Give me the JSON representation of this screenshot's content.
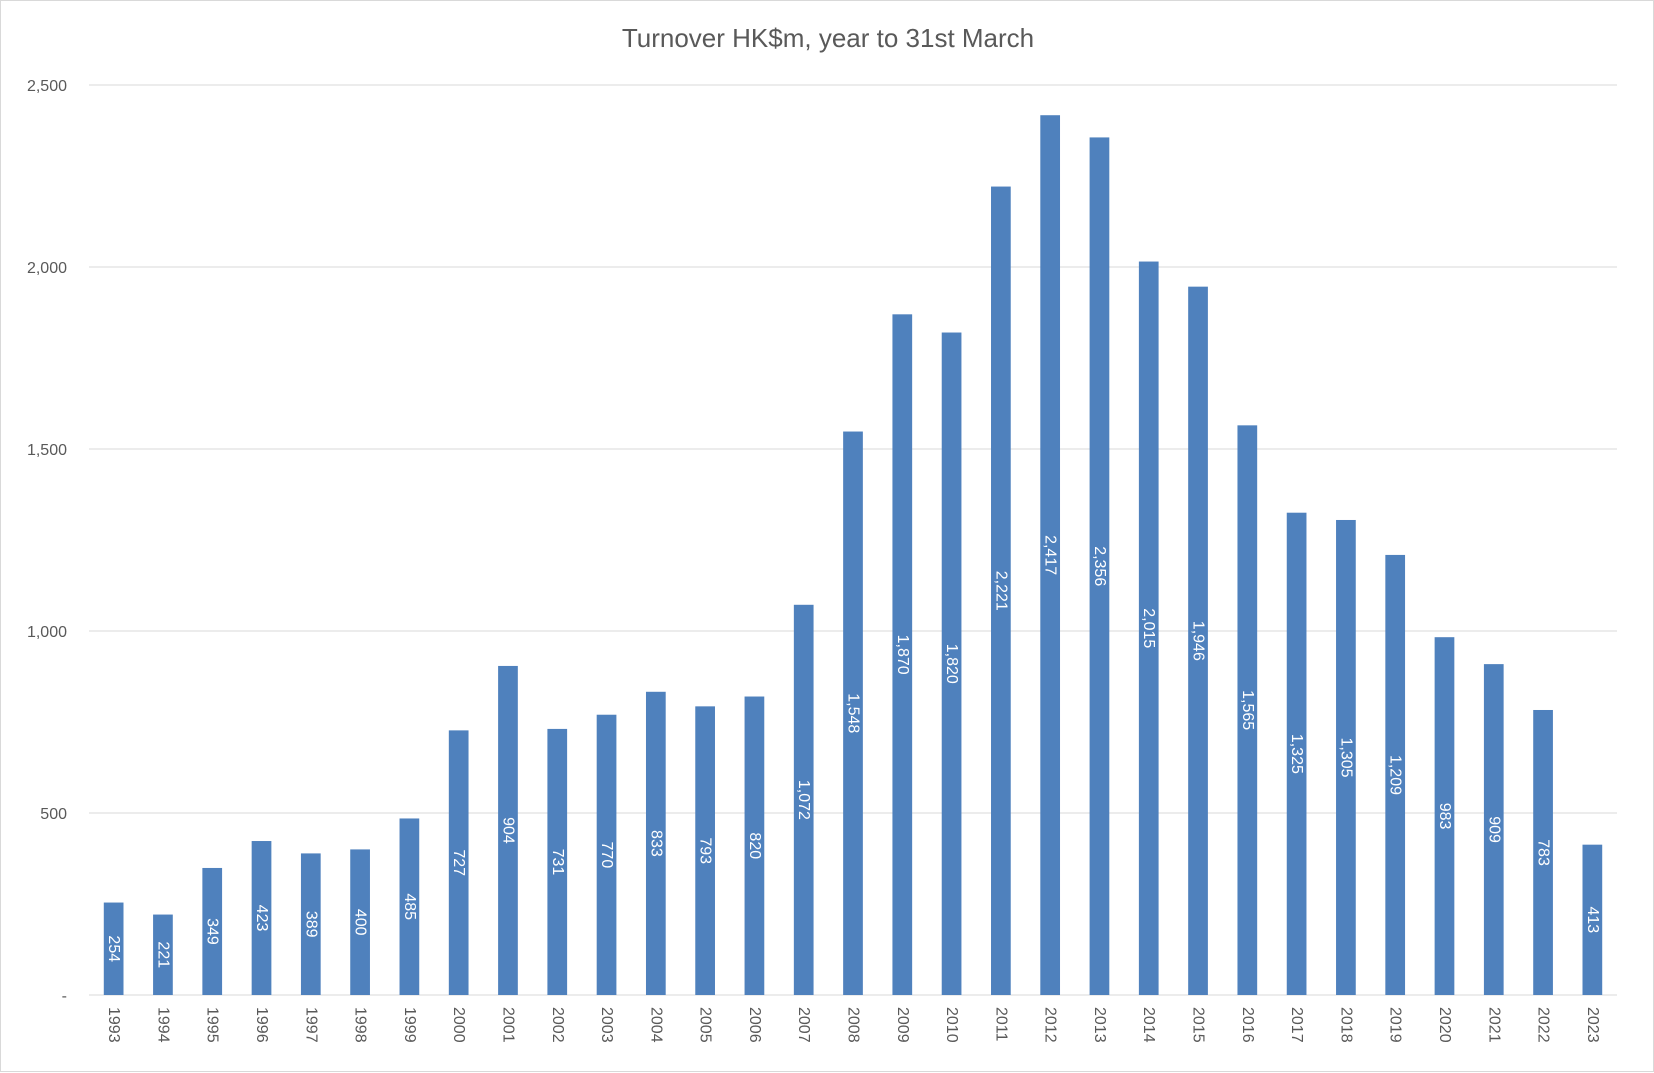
{
  "chart_data": {
    "type": "bar",
    "title": "Turnover HK$m, year to 31st March",
    "xlabel": "",
    "ylabel": "",
    "ylim": [
      0,
      2500
    ],
    "yticks": [
      {
        "value": 0,
        "label": "-"
      },
      {
        "value": 500,
        "label": "500"
      },
      {
        "value": 1000,
        "label": "1,000"
      },
      {
        "value": 1500,
        "label": "1,500"
      },
      {
        "value": 2000,
        "label": "2,000"
      },
      {
        "value": 2500,
        "label": "2,500"
      }
    ],
    "grid": true,
    "legend": "none",
    "bar_color": "#4f81bd",
    "categories": [
      "1993",
      "1994",
      "1995",
      "1996",
      "1997",
      "1998",
      "1999",
      "2000",
      "2001",
      "2002",
      "2003",
      "2004",
      "2005",
      "2006",
      "2007",
      "2008",
      "2009",
      "2010",
      "2011",
      "2012",
      "2013",
      "2014",
      "2015",
      "2016",
      "2017",
      "2018",
      "2019",
      "2020",
      "2021",
      "2022",
      "2023"
    ],
    "values": [
      254,
      221,
      349,
      423,
      389,
      400,
      485,
      727,
      904,
      731,
      770,
      833,
      793,
      820,
      1072,
      1548,
      1870,
      1820,
      2221,
      2417,
      2356,
      2015,
      1946,
      1565,
      1325,
      1305,
      1209,
      983,
      909,
      783,
      413
    ],
    "data_labels": [
      "254",
      "221",
      "349",
      "423",
      "389",
      "400",
      "485",
      "727",
      "904",
      "731",
      "770",
      "833",
      "793",
      "820",
      "1,072",
      "1,548",
      "1,870",
      "1,820",
      "2,221",
      "2,417",
      "2,356",
      "2,015",
      "1,946",
      "1,565",
      "1,325",
      "1,305",
      "1,209",
      "983",
      "909",
      "783",
      "413"
    ]
  }
}
